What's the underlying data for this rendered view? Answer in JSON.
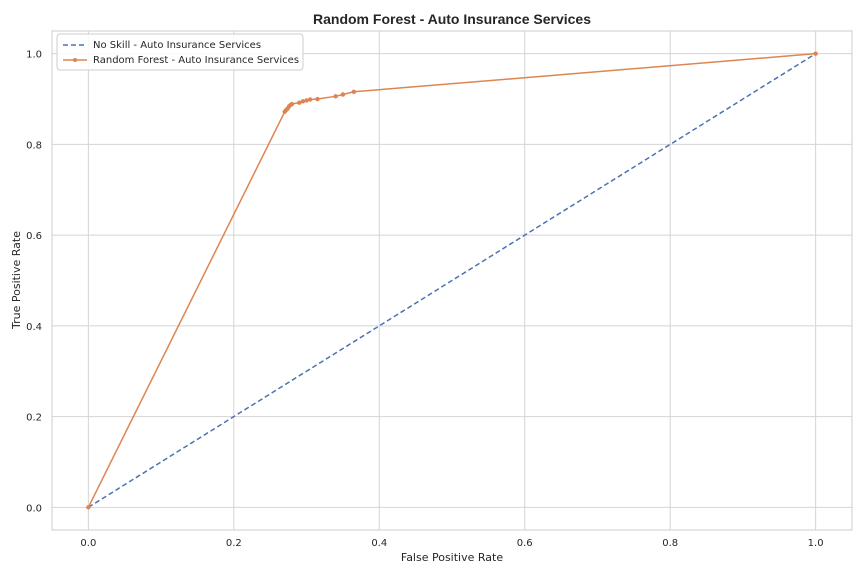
{
  "chart_data": {
    "type": "line",
    "title": "Random Forest - Auto Insurance Services",
    "xlabel": "False Positive Rate",
    "ylabel": "True Positive Rate",
    "xlim": [
      -0.05,
      1.05
    ],
    "ylim": [
      -0.05,
      1.05
    ],
    "x_ticks": [
      "0.0",
      "0.2",
      "0.4",
      "0.6",
      "0.8",
      "1.0"
    ],
    "y_ticks": [
      "0.0",
      "0.2",
      "0.4",
      "0.6",
      "0.8",
      "1.0"
    ],
    "grid": true,
    "legend_position": "upper-left",
    "series": [
      {
        "name": "No Skill - Auto Insurance Services",
        "style": "dashed",
        "marker": "none",
        "color": "#4c72b0",
        "x": [
          0.0,
          1.0
        ],
        "y": [
          0.0,
          1.0
        ]
      },
      {
        "name": "Random Forest - Auto Insurance Services",
        "style": "solid",
        "marker": "dot",
        "color": "#dd8452",
        "x": [
          0.0,
          0.27,
          0.272,
          0.274,
          0.276,
          0.278,
          0.28,
          0.29,
          0.295,
          0.3,
          0.305,
          0.315,
          0.34,
          0.35,
          0.365,
          1.0
        ],
        "y": [
          0.0,
          0.872,
          0.876,
          0.879,
          0.884,
          0.887,
          0.889,
          0.892,
          0.895,
          0.897,
          0.899,
          0.9,
          0.906,
          0.91,
          0.916,
          1.0
        ]
      }
    ]
  }
}
